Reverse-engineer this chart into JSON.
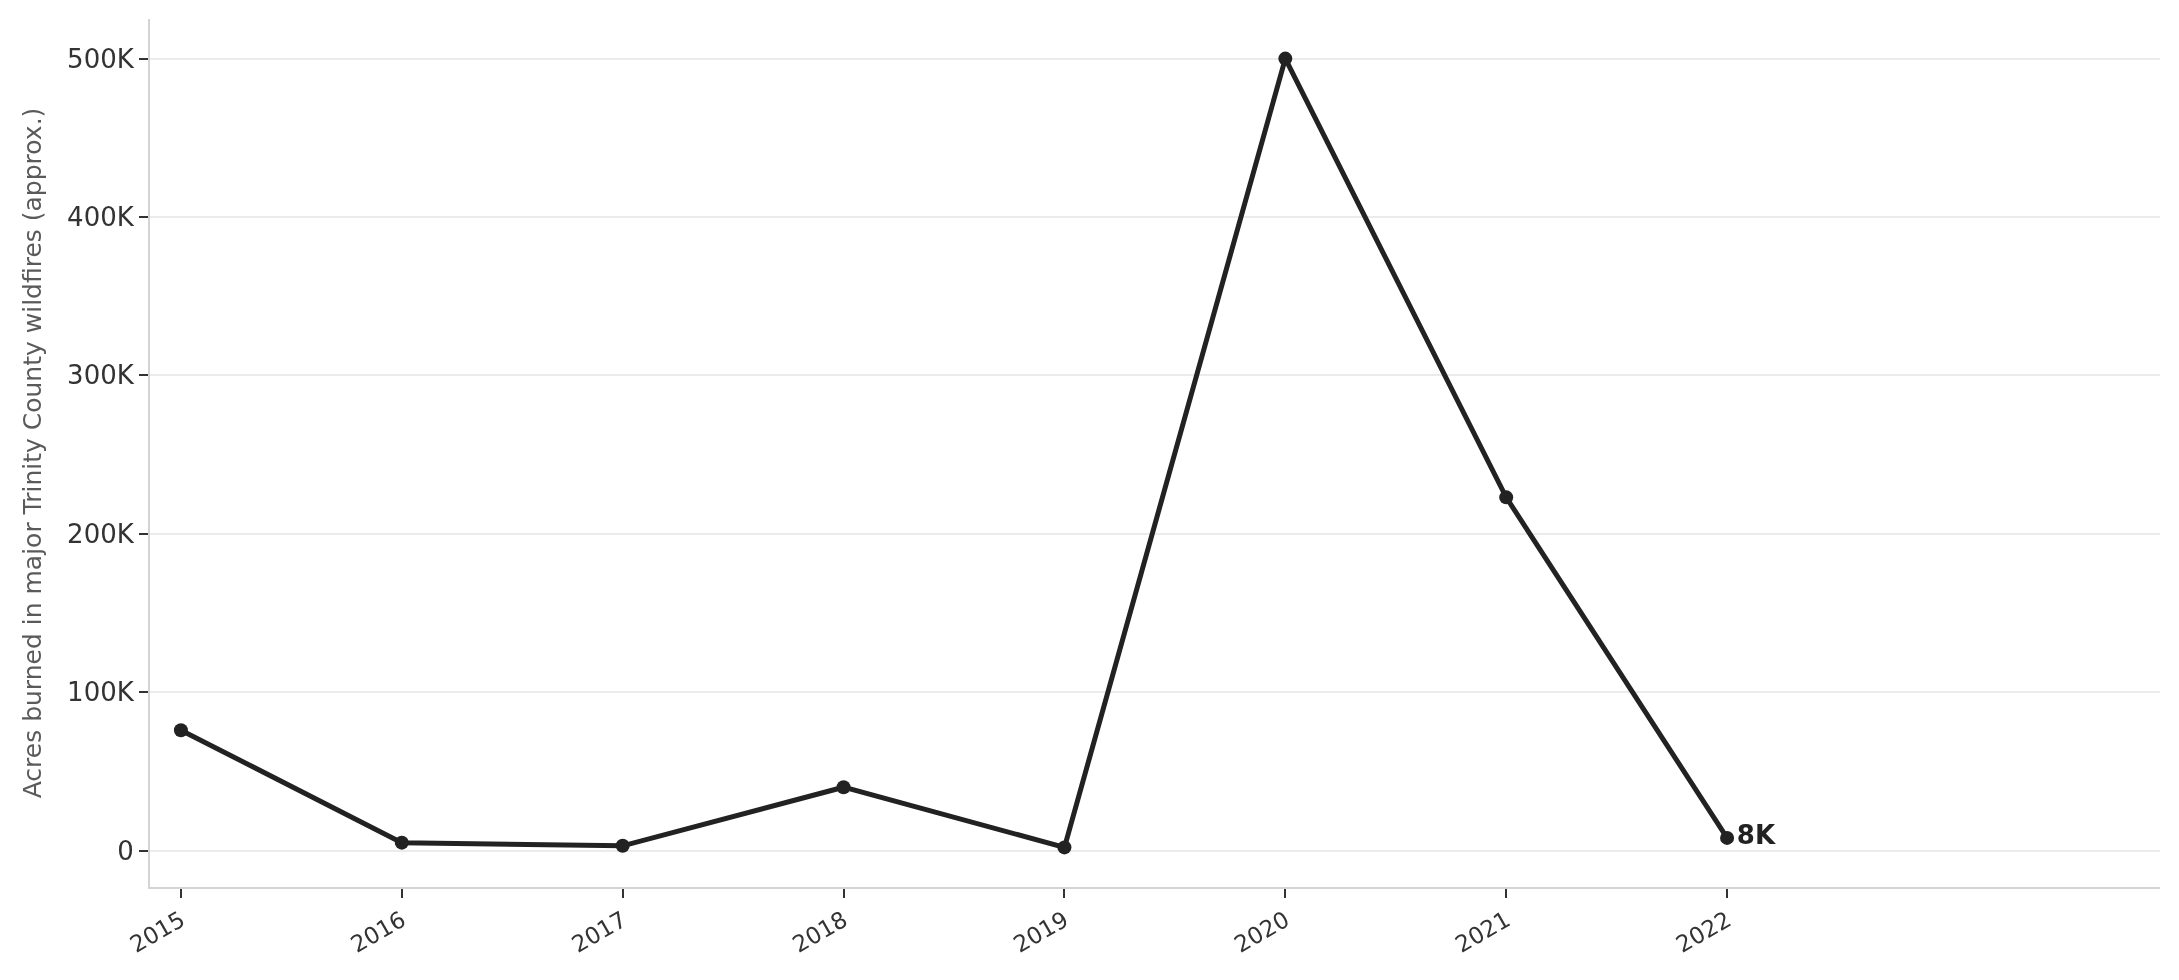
{
  "chart_data": {
    "type": "line",
    "ylabel": "Acres burned in major Trinity County wildfires (approx.)",
    "x": [
      2015,
      2016,
      2017,
      2018,
      2019,
      2020,
      2021,
      2022
    ],
    "xlim": [
      2014.86,
      2023.96
    ],
    "xticks": [
      2015,
      2016,
      2017,
      2018,
      2019,
      2020,
      2021,
      2022
    ],
    "ylim": [
      -23000,
      525000
    ],
    "yticks": [
      0,
      {
        "value": 100000,
        "label": "100K"
      },
      {
        "value": 200000,
        "label": "200K"
      },
      {
        "value": 300000,
        "label": "300K"
      },
      {
        "value": 400000,
        "label": "400K"
      },
      {
        "value": 500000,
        "label": "500K"
      }
    ],
    "series": [
      {
        "color": "#222222",
        "values": [
          76000,
          5000,
          3000,
          40000,
          2000,
          500000,
          223000,
          8000
        ],
        "value_labels": [
          null,
          null,
          null,
          null,
          null,
          null,
          null,
          "8K"
        ]
      }
    ],
    "grid": "y",
    "marker": "circle",
    "line_style": "solid"
  }
}
